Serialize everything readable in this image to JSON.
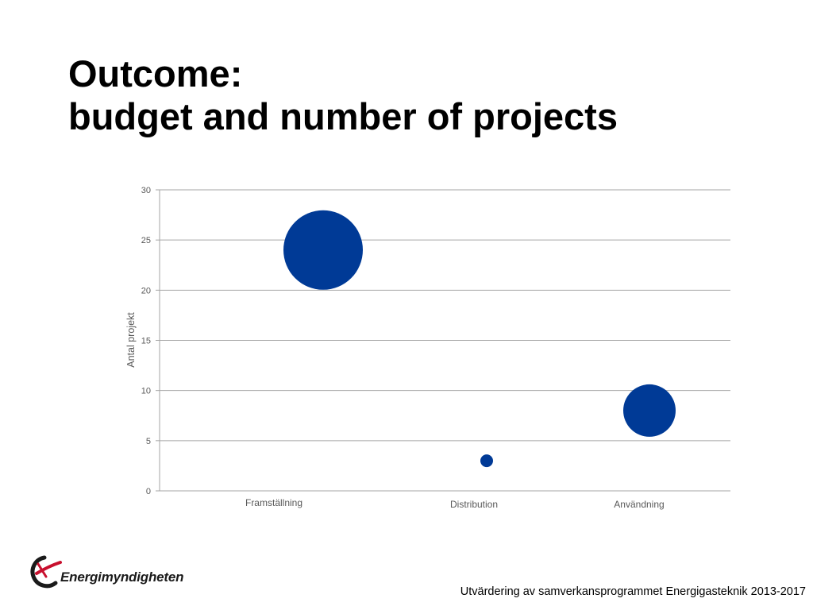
{
  "slide": {
    "title_line1": "Outcome:",
    "title_line2": "budget and number of projects",
    "footer": "Utvärdering av samverkansprogrammet Energigasteknik 2013-2017",
    "logo_text": "Energimyndigheten"
  },
  "colors": {
    "bubble": "#003A96",
    "grid": "#A6A6A6",
    "tick": "#595959",
    "logo_red": "#C8102E"
  },
  "chart_data": {
    "type": "bubble",
    "ylabel": "Antal projekt",
    "xlabel": "",
    "ylim": [
      0,
      30
    ],
    "yticks": [
      0,
      5,
      10,
      15,
      20,
      25,
      30
    ],
    "categories": [
      "Framställning",
      "Distribution",
      "Användning"
    ],
    "points": [
      {
        "category": "Framställning",
        "y": 24,
        "size": 50
      },
      {
        "category": "Distribution",
        "y": 3,
        "size": 8
      },
      {
        "category": "Användning",
        "y": 8,
        "size": 33
      }
    ],
    "grid": true,
    "legend": "none"
  }
}
